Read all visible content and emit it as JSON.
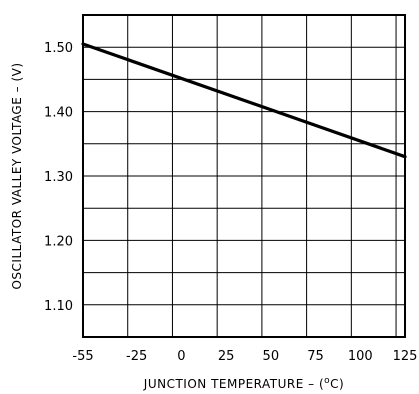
{
  "chart_data": {
    "type": "line",
    "title": "",
    "xlabel": "JUNCTION TEMPERATURE – (°C)",
    "xlabel_parts": {
      "pre": "JUNCTION TEMPERATURE – (",
      "deg": "o",
      "post": "C)"
    },
    "ylabel": "OSCILLATOR VALLEY VOLTAGE – (V)",
    "xlim": [
      -55,
      125
    ],
    "ylim": [
      1.05,
      1.55
    ],
    "x_ticks": [
      -55,
      -25,
      0,
      25,
      50,
      75,
      100,
      125
    ],
    "x_tick_labels": [
      "-55",
      "-25",
      "0",
      "25",
      "50",
      "75",
      "100",
      "125"
    ],
    "y_ticks": [
      1.1,
      1.2,
      1.3,
      1.4,
      1.5
    ],
    "y_tick_labels": [
      "1.10",
      "1.20",
      "1.30",
      "1.40",
      "1.50"
    ],
    "x_grid": [
      -55,
      -30,
      -5,
      20,
      45,
      70,
      95,
      120,
      125
    ],
    "y_grid": [
      1.05,
      1.1,
      1.15,
      1.2,
      1.25,
      1.3,
      1.35,
      1.4,
      1.45,
      1.5,
      1.55
    ],
    "grid": true,
    "series": [
      {
        "x": [
          -55,
          125
        ],
        "y": [
          1.505,
          1.33
        ]
      }
    ]
  }
}
